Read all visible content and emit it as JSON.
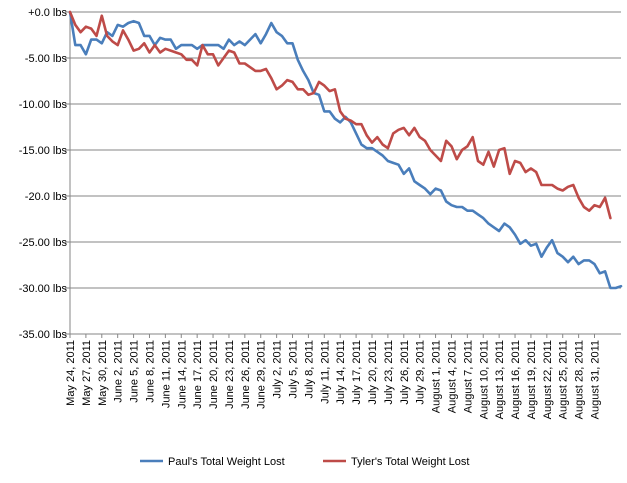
{
  "chart_data": {
    "type": "line",
    "title": "",
    "xlabel": "",
    "ylabel": "",
    "ylim": [
      -35,
      0
    ],
    "grid": "horizontal",
    "legend_position": "bottom",
    "y_ticks": [
      {
        "value": 0,
        "label": "+0.0 lbs",
        "color": "#c00000"
      },
      {
        "value": -5,
        "label": "-5.00 lbs",
        "color": "#000000"
      },
      {
        "value": -10,
        "label": "-10.00 lbs",
        "color": "#000000"
      },
      {
        "value": -15,
        "label": "-15.00 lbs",
        "color": "#000000"
      },
      {
        "value": -20,
        "label": "-20.0 lbs",
        "color": "#000000"
      },
      {
        "value": -25,
        "label": "-25.00 lbs",
        "color": "#000000"
      },
      {
        "value": -30,
        "label": "-30.00 lbs",
        "color": "#000000"
      },
      {
        "value": -35,
        "label": "-35.00 lbs",
        "color": "#000000"
      }
    ],
    "x_tick_labels": [
      "May 24, 2011",
      "May 27, 2011",
      "May 30, 2011",
      "June 2, 2011",
      "June 5, 2011",
      "June 8, 2011",
      "June 11, 2011",
      "June 14, 2011",
      "June 17, 2011",
      "June 20, 2011",
      "June 23, 2011",
      "June 26, 2011",
      "June 29, 2011",
      "July 2, 2011",
      "July 5, 2011",
      "July 8, 2011",
      "July 11, 2011",
      "July 14, 2011",
      "July 17, 2011",
      "July 20, 2011",
      "July 23, 2011",
      "July 26, 2011",
      "July 29, 2011",
      "August 1, 2011",
      "August 4, 2011",
      "August 7, 2011",
      "August 10, 2011",
      "August 13, 2011",
      "August 16, 2011",
      "August 19, 2011",
      "August 22, 2011",
      "August 25, 2011",
      "August 28, 2011",
      "August 31, 2011"
    ],
    "series": [
      {
        "name": "Paul's Total Weight Lost",
        "color": "#4a7ebb",
        "values": [
          0,
          -3.6,
          -3.6,
          -4.6,
          -3,
          -3,
          -3.4,
          -2.2,
          -2.6,
          -1.4,
          -1.6,
          -1.2,
          -1,
          -1.2,
          -2.6,
          -2.6,
          -3.6,
          -2.8,
          -3,
          -3,
          -4,
          -3.6,
          -3.6,
          -3.6,
          -4,
          -3.6,
          -3.6,
          -3.6,
          -3.6,
          -4,
          -3,
          -3.6,
          -3.2,
          -3.6,
          -3,
          -2.4,
          -3.4,
          -2.4,
          -1.2,
          -2.2,
          -2.6,
          -3.4,
          -3.4,
          -5.2,
          -6.4,
          -7.4,
          -8.8,
          -9,
          -10.8,
          -10.8,
          -11.6,
          -12,
          -11.4,
          -12,
          -13.2,
          -14.4,
          -14.8,
          -14.8,
          -15.2,
          -15.6,
          -16.2,
          -16.4,
          -16.6,
          -17.6,
          -17,
          -18.4,
          -18.8,
          -19.2,
          -19.8,
          -19.2,
          -19.4,
          -20.6,
          -21,
          -21.2,
          -21.2,
          -21.6,
          -21.6,
          -22,
          -22.4,
          -23,
          -23.4,
          -23.8,
          -23,
          -23.4,
          -24.2,
          -25.2,
          -24.8,
          -25.4,
          -25.2,
          -26.6,
          -25.6,
          -24.8,
          -26.2,
          -26.6,
          -27.2,
          -26.6,
          -27.4,
          -27,
          -27,
          -27.4,
          -28.4,
          -28.2,
          -30,
          -30,
          -29.8
        ]
      },
      {
        "name": "Tyler's Total Weight Lost",
        "color": "#be4b48",
        "values": [
          0,
          -1.4,
          -2.2,
          -1.6,
          -1.8,
          -2.6,
          -0.4,
          -2.6,
          -3.2,
          -3.6,
          -2,
          -3,
          -4.2,
          -4,
          -3.4,
          -4.4,
          -3.6,
          -4.4,
          -4,
          -4.2,
          -4.4,
          -4.6,
          -5.2,
          -5.2,
          -5.8,
          -3.6,
          -4.6,
          -4.6,
          -5.8,
          -5,
          -4.2,
          -4.4,
          -5.6,
          -5.6,
          -6,
          -6.4,
          -6.4,
          -6.2,
          -7.2,
          -8.4,
          -8,
          -7.4,
          -7.6,
          -8.4,
          -8.4,
          -9,
          -8.8,
          -7.6,
          -8,
          -8.6,
          -8.4,
          -10.8,
          -11.6,
          -11.8,
          -12.2,
          -12.2,
          -13.4,
          -14.2,
          -13.6,
          -14.4,
          -14.8,
          -13.2,
          -12.8,
          -12.6,
          -13.4,
          -12.6,
          -13.6,
          -14,
          -15,
          -15.6,
          -16.2,
          -14,
          -14.6,
          -16,
          -15,
          -14.6,
          -13.6,
          -16.2,
          -16.6,
          -15.2,
          -16.8,
          -15,
          -14.8,
          -17.6,
          -16.2,
          -16.4,
          -17.4,
          -17,
          -17.4,
          -18.8,
          -18.8,
          -18.8,
          -19.2,
          -19.4,
          -19,
          -18.8,
          -20.2,
          -21.2,
          -21.6,
          -21,
          -21.2,
          -20.2,
          -22.4
        ]
      }
    ]
  }
}
